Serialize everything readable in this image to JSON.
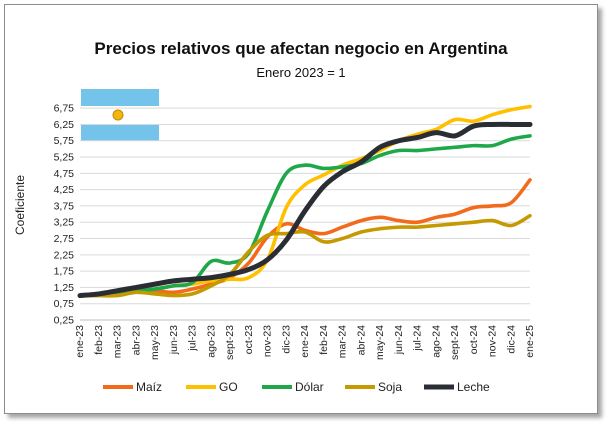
{
  "chart_data": {
    "type": "line",
    "title": "Precios relativos que afectan negocio en Argentina",
    "subtitle": "Enero 2023 = 1",
    "ylabel": "Coeficiente",
    "xlabel": "",
    "ylim": [
      0.25,
      7.0
    ],
    "y_ticks": [
      "0,25",
      "0,75",
      "1,25",
      "1,75",
      "2,25",
      "2,75",
      "3,25",
      "3,75",
      "4,25",
      "4,75",
      "5,25",
      "5,75",
      "6,25",
      "6,75"
    ],
    "grid": "horizontal",
    "legend_position": "bottom",
    "x_tick_labels": [
      "ene-23",
      "feb-23",
      "mar-23",
      "abr-23",
      "may-23",
      "jun-23",
      "jul-23",
      "ago-23",
      "sept-23",
      "oct-23",
      "nov-23",
      "dic-23",
      "ene-24",
      "feb-24",
      "mar-24",
      "abr-24",
      "may-24",
      "jun-24",
      "jul-24",
      "ago-24",
      "sept-24",
      "oct-24",
      "nov-24",
      "dic-24",
      "ene-25"
    ],
    "series": [
      {
        "name": "Maíz",
        "color": "#f26b1d",
        "values": [
          1.0,
          1.05,
          1.1,
          1.15,
          1.15,
          1.1,
          1.2,
          1.35,
          1.55,
          2.0,
          2.8,
          3.2,
          3.0,
          2.9,
          3.1,
          3.3,
          3.4,
          3.3,
          3.25,
          3.4,
          3.5,
          3.7,
          3.75,
          3.85,
          4.55
        ]
      },
      {
        "name": "GO",
        "color": "#ffc000",
        "values": [
          1.0,
          1.0,
          1.05,
          1.15,
          1.2,
          1.3,
          1.35,
          1.45,
          1.5,
          1.55,
          2.1,
          3.7,
          4.4,
          4.7,
          5.0,
          5.2,
          5.45,
          5.75,
          5.95,
          6.1,
          6.4,
          6.35,
          6.55,
          6.7,
          6.8
        ]
      },
      {
        "name": "Dólar",
        "color": "#1ea84a",
        "values": [
          1.0,
          1.05,
          1.1,
          1.15,
          1.2,
          1.3,
          1.4,
          2.05,
          2.0,
          2.3,
          3.6,
          4.75,
          5.0,
          4.9,
          4.95,
          5.05,
          5.3,
          5.45,
          5.45,
          5.5,
          5.55,
          5.6,
          5.6,
          5.8,
          5.9
        ]
      },
      {
        "name": "Soja",
        "color": "#c49a00",
        "values": [
          1.0,
          1.0,
          1.0,
          1.1,
          1.05,
          1.0,
          1.05,
          1.3,
          1.65,
          2.35,
          2.85,
          2.9,
          2.95,
          2.65,
          2.75,
          2.95,
          3.05,
          3.1,
          3.1,
          3.15,
          3.2,
          3.25,
          3.3,
          3.15,
          3.45
        ]
      },
      {
        "name": "Leche",
        "color": "#2b2d35",
        "values": [
          1.0,
          1.05,
          1.15,
          1.25,
          1.35,
          1.45,
          1.5,
          1.55,
          1.65,
          1.8,
          2.1,
          2.7,
          3.6,
          4.35,
          4.8,
          5.1,
          5.55,
          5.75,
          5.85,
          6.0,
          5.9,
          6.2,
          6.25,
          6.25,
          6.25
        ]
      }
    ]
  }
}
